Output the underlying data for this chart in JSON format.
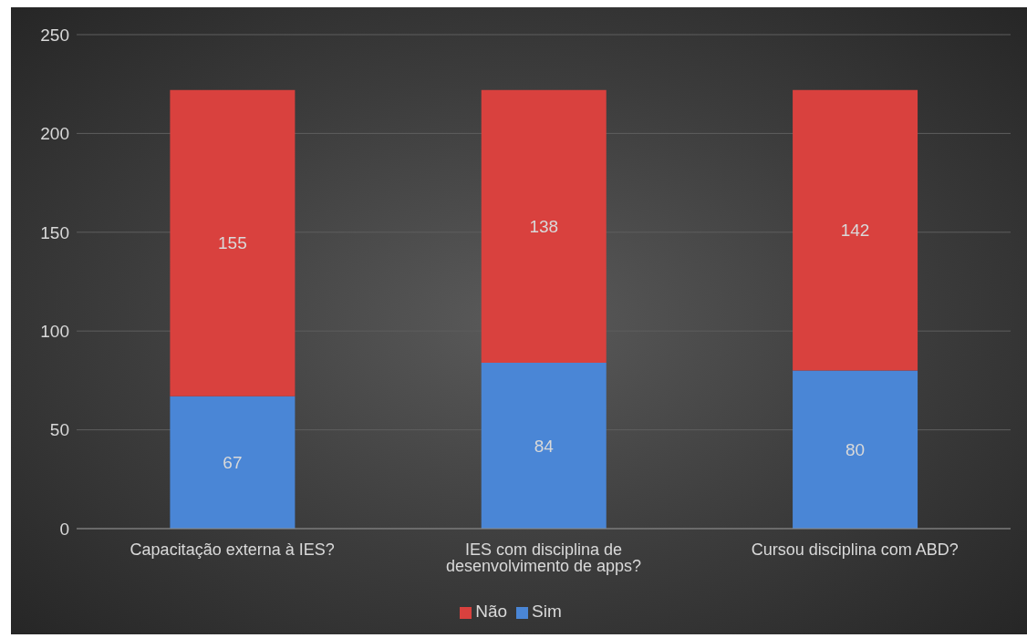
{
  "chart_data": {
    "type": "bar",
    "stacked": true,
    "categories": [
      "Capacitação externa à IES?",
      "IES com disciplina de desenvolvimento de apps?",
      "Cursou disciplina com ABD?"
    ],
    "series": [
      {
        "name": "Sim",
        "color": "#4a86d6",
        "values": [
          67,
          84,
          80
        ]
      },
      {
        "name": "Não",
        "color": "#d9413e",
        "values": [
          155,
          138,
          142
        ]
      }
    ],
    "ylim": [
      0,
      250
    ],
    "yticks": [
      0,
      50,
      100,
      150,
      200,
      250
    ],
    "grid": "y",
    "legend": "bottom",
    "data_labels": true
  }
}
